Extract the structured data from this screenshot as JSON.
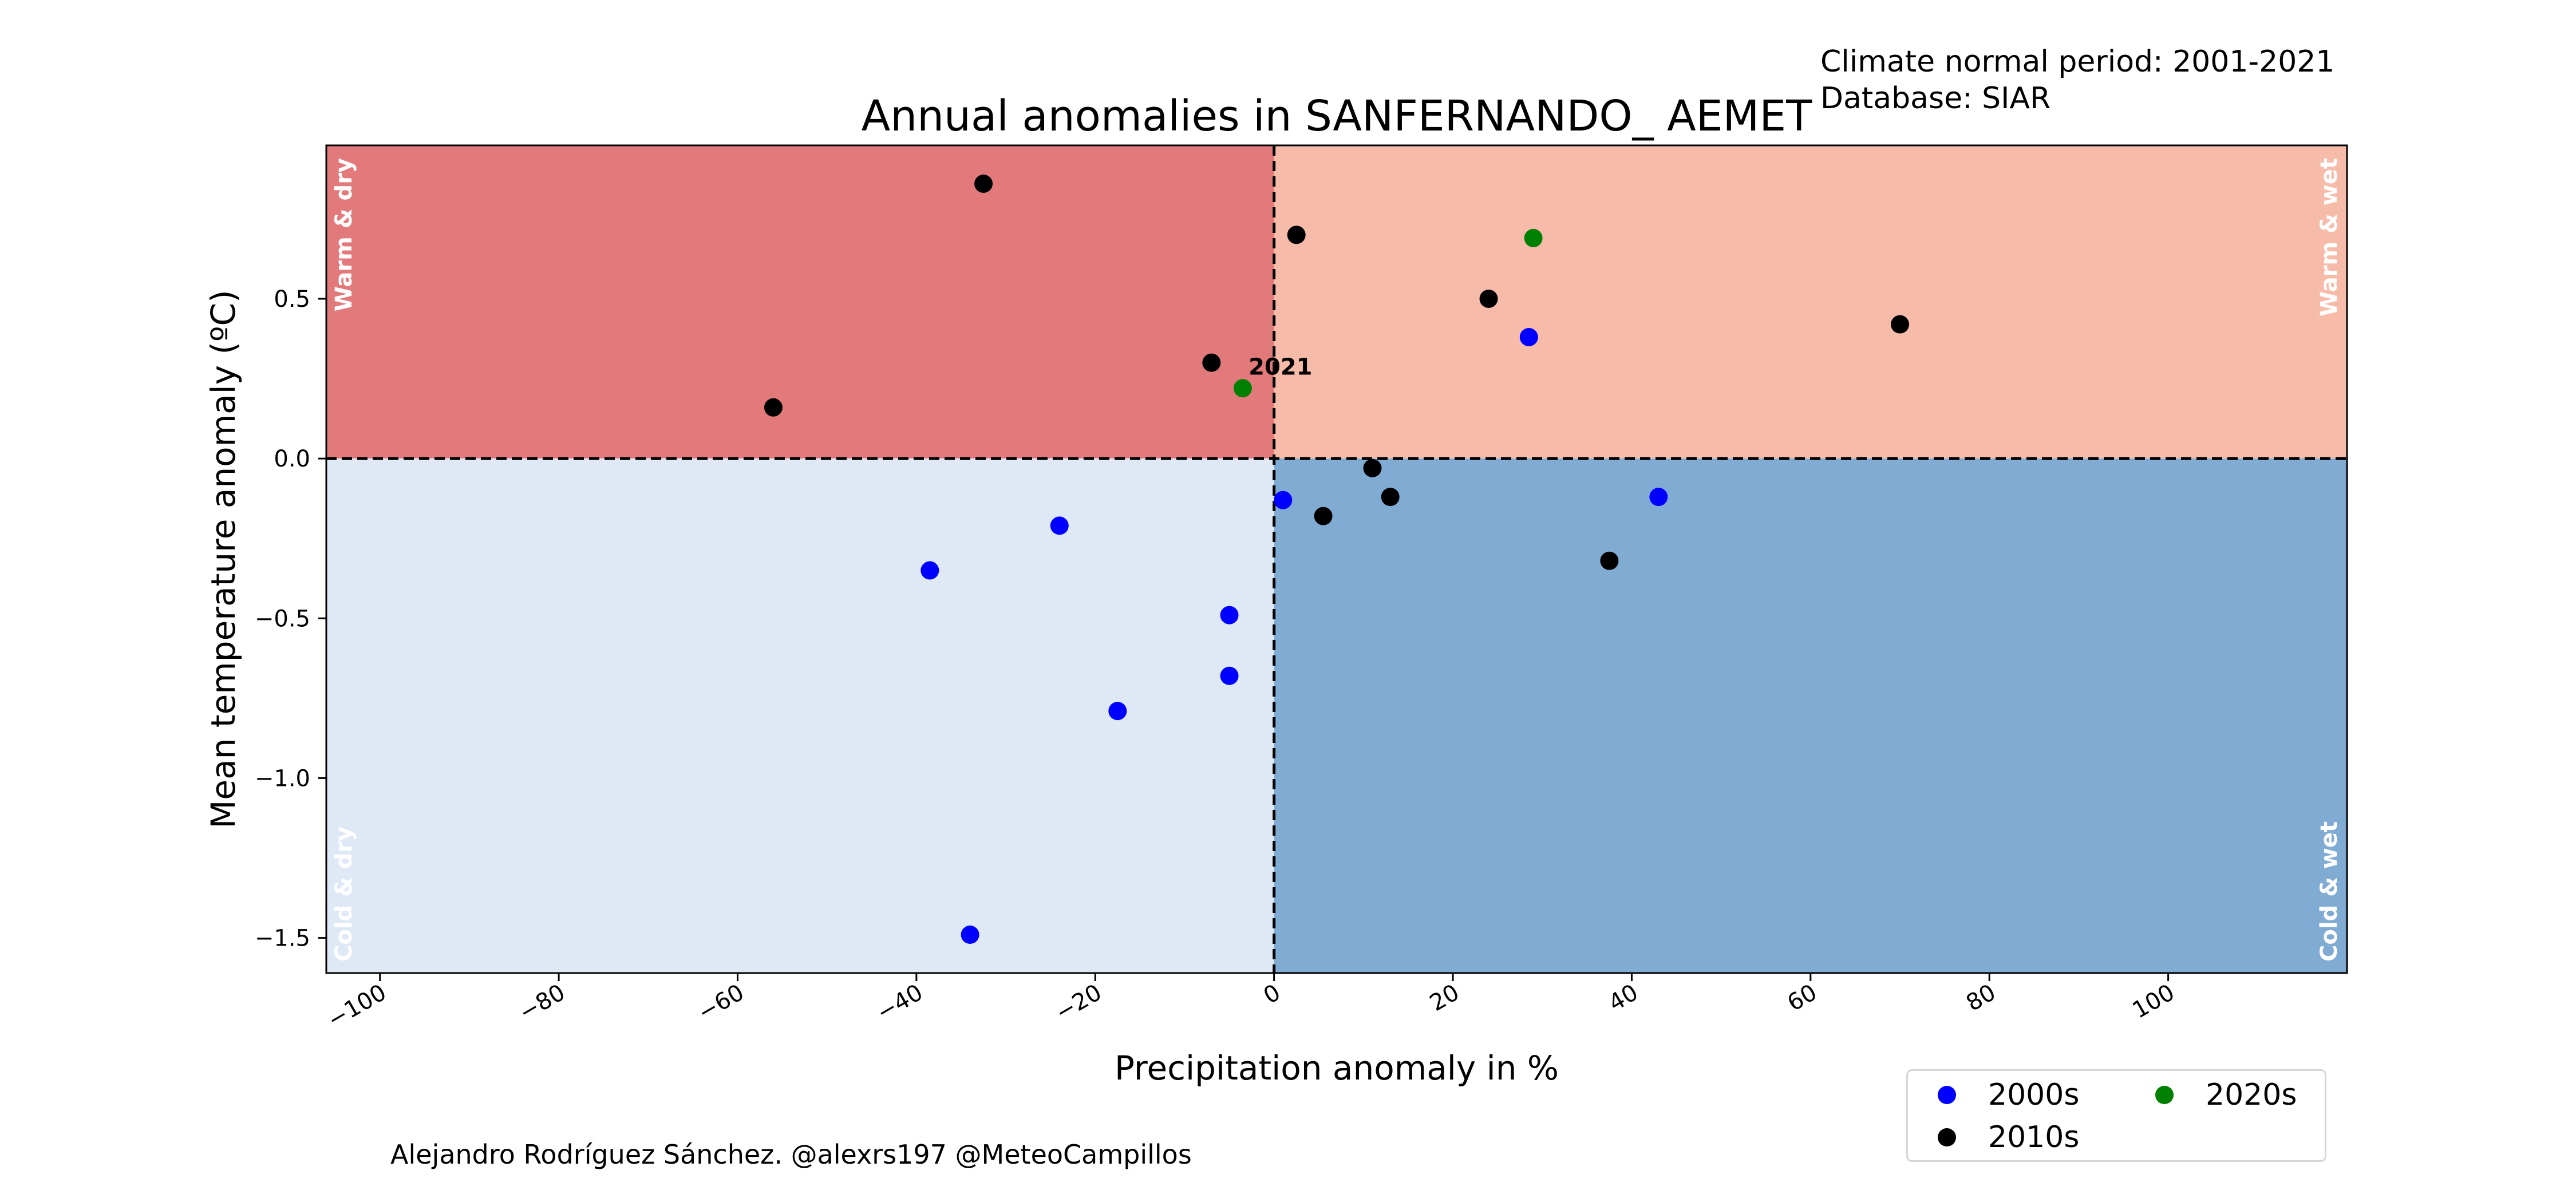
{
  "header": {
    "climate_normal": "Climate normal period: 2001-2021",
    "database": "Database: SIAR"
  },
  "credit": "Alejandro Rodríguez Sánchez. @alexrs197 @MeteoCampillos",
  "colors": {
    "warm_dry": "#e27a7c",
    "warm_wet": "#f7bba9",
    "cold_dry": "#dfe9f5",
    "cold_wet": "#80acd4",
    "series_2000s": "#0000ff",
    "series_2010s": "#000000",
    "series_2020s": "#008000"
  },
  "chart_data": {
    "type": "scatter",
    "title": "Annual anomalies in SANFERNANDO_ AEMET",
    "xlabel": "Precipitation anomaly in %",
    "ylabel": "Mean temperature anomaly (ºC)",
    "xlim": [
      -106,
      120
    ],
    "ylim": [
      -1.61,
      0.98
    ],
    "xticks": [
      -100,
      -80,
      -60,
      -40,
      -20,
      0,
      20,
      40,
      60,
      80,
      100
    ],
    "xtick_labels": [
      "−100",
      "−80",
      "−60",
      "−40",
      "−20",
      "0",
      "20",
      "40",
      "60",
      "80",
      "100"
    ],
    "yticks": [
      -1.5,
      -1.0,
      -0.5,
      0.0,
      0.5
    ],
    "ytick_labels": [
      "−1.5",
      "−1.0",
      "−0.5",
      "0.0",
      "0.5"
    ],
    "grid": false,
    "legend_position": "bottom-right, below axes",
    "quadrant_labels": {
      "warm_dry": "Warm & dry",
      "warm_wet": "Warm & wet",
      "cold_dry": "Cold & dry",
      "cold_wet": "Cold & wet"
    },
    "annotations": [
      {
        "text": "2021",
        "x": -4,
        "y": 0.22
      }
    ],
    "series": [
      {
        "name": "2000s",
        "color": "#0000ff",
        "points": [
          {
            "x": -38.5,
            "y": -0.35
          },
          {
            "x": -24,
            "y": -0.21
          },
          {
            "x": -34,
            "y": -1.49
          },
          {
            "x": -17.5,
            "y": -0.79
          },
          {
            "x": -5,
            "y": -0.49
          },
          {
            "x": -5,
            "y": -0.68
          },
          {
            "x": 1,
            "y": -0.13
          },
          {
            "x": 28.5,
            "y": 0.38
          },
          {
            "x": 43,
            "y": -0.12
          }
        ]
      },
      {
        "name": "2010s",
        "color": "#000000",
        "points": [
          {
            "x": -32.5,
            "y": 0.86
          },
          {
            "x": -56,
            "y": 0.16
          },
          {
            "x": -7,
            "y": 0.3
          },
          {
            "x": 2.5,
            "y": 0.7
          },
          {
            "x": 24,
            "y": 0.5
          },
          {
            "x": 70,
            "y": 0.42
          },
          {
            "x": 11,
            "y": -0.03
          },
          {
            "x": 5.5,
            "y": -0.18
          },
          {
            "x": 13,
            "y": -0.12
          },
          {
            "x": 37.5,
            "y": -0.32
          }
        ]
      },
      {
        "name": "2020s",
        "color": "#008000",
        "points": [
          {
            "x": 29,
            "y": 0.69
          },
          {
            "x": -3.5,
            "y": 0.22
          }
        ]
      }
    ]
  }
}
